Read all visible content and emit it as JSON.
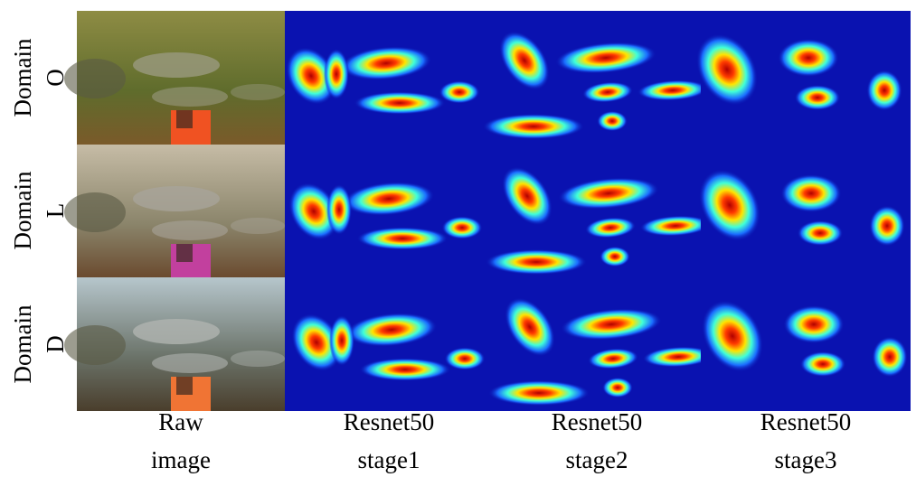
{
  "row_labels": [
    {
      "line1": "Domain",
      "line2": "O"
    },
    {
      "line1": "Domain",
      "line2": "L"
    },
    {
      "line1": "Domain",
      "line2": "D"
    }
  ],
  "column_labels": [
    {
      "line1": "Raw",
      "line2": "image"
    },
    {
      "line1": "Resnet50",
      "line2": "stage1"
    },
    {
      "line1": "Resnet50",
      "line2": "stage2"
    },
    {
      "line1": "Resnet50",
      "line2": "stage3"
    }
  ]
}
